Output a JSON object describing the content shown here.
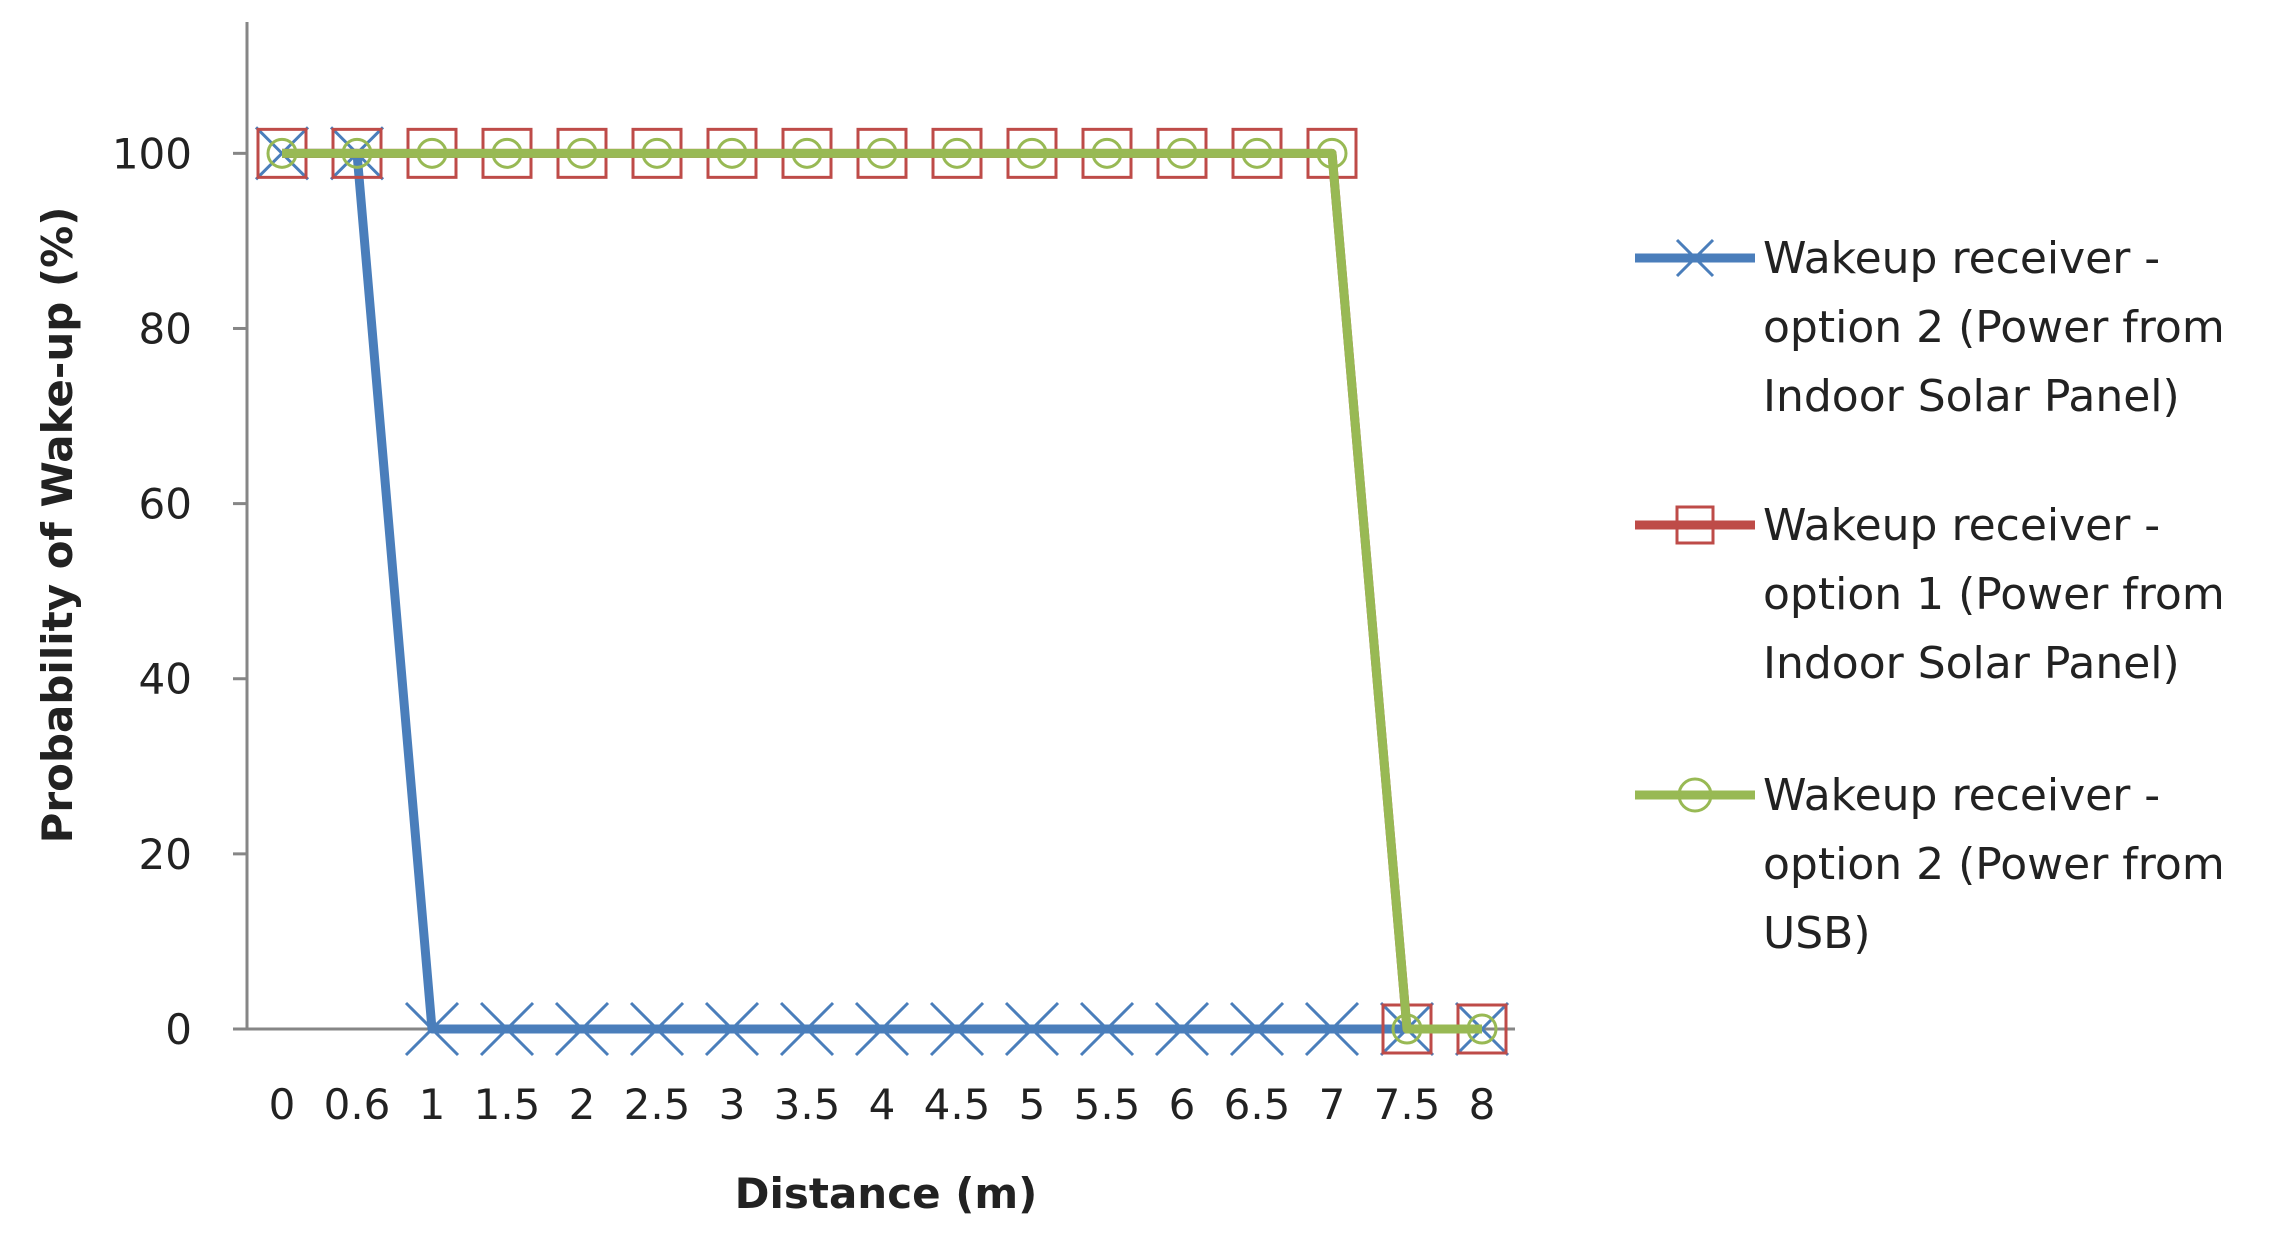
{
  "chart_data": {
    "type": "line",
    "xlabel": "Distance (m)",
    "ylabel": "Probability of Wake-up (%)",
    "categories": [
      "0",
      "0.6",
      "1",
      "1.5",
      "2",
      "2.5",
      "3",
      "3.5",
      "4",
      "4.5",
      "5",
      "5.5",
      "6",
      "6.5",
      "7",
      "7.5",
      "8"
    ],
    "ylim": [
      0,
      115
    ],
    "yticks": [
      0,
      20,
      40,
      60,
      80,
      100
    ],
    "grid": false,
    "legend_position": "right",
    "series": [
      {
        "name_lines": [
          "Wakeup receiver -",
          "option 2 (Power from",
          "Indoor Solar Panel)"
        ],
        "color": "#4a7ebb",
        "marker": "x",
        "values": [
          100,
          100,
          0,
          0,
          0,
          0,
          0,
          0,
          0,
          0,
          0,
          0,
          0,
          0,
          0,
          0,
          0
        ]
      },
      {
        "name_lines": [
          "Wakeup receiver -",
          "option 1 (Power from",
          "Indoor Solar Panel)"
        ],
        "color": "#be4b48",
        "marker": "square",
        "values": [
          100,
          100,
          100,
          100,
          100,
          100,
          100,
          100,
          100,
          100,
          100,
          100,
          100,
          100,
          100,
          0,
          0
        ]
      },
      {
        "name_lines": [
          "Wakeup receiver -",
          "option 2 (Power from",
          "USB)"
        ],
        "color": "#98b954",
        "marker": "circle",
        "values": [
          100,
          100,
          100,
          100,
          100,
          100,
          100,
          100,
          100,
          100,
          100,
          100,
          100,
          100,
          100,
          0,
          0
        ]
      }
    ]
  }
}
